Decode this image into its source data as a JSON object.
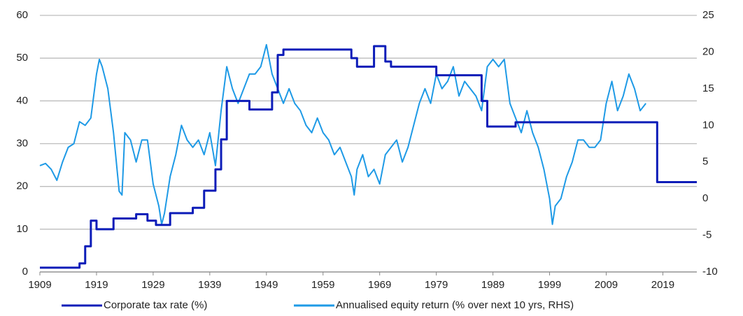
{
  "chart_data": {
    "type": "line",
    "xlim": [
      1909,
      2025
    ],
    "xticks": [
      1909,
      1919,
      1929,
      1939,
      1949,
      1959,
      1969,
      1979,
      1989,
      1999,
      2009,
      2019
    ],
    "ylim": [
      0,
      60
    ],
    "yticks": [
      0,
      10,
      20,
      30,
      40,
      50,
      60
    ],
    "y2lim": [
      -10,
      25
    ],
    "y2ticks": [
      -10,
      -5,
      0,
      5,
      10,
      15,
      20,
      25
    ],
    "grid": true,
    "legend": "bottom",
    "series": [
      {
        "name": "Corporate tax rate (%)",
        "color": "#0c1cb8",
        "step": true,
        "x": [
          1909,
          1916,
          1917,
          1918,
          1919,
          1922,
          1926,
          1928,
          1929.5,
          1932,
          1936,
          1938,
          1940,
          1941,
          1942,
          1946,
          1950,
          1951,
          1952,
          1964,
          1965,
          1968,
          1970,
          1971,
          1979,
          1987,
          1988,
          1993,
          2018,
          2025
        ],
        "values": [
          1,
          2,
          6,
          12,
          10,
          12.5,
          13.5,
          12,
          11,
          13.75,
          15,
          19,
          24,
          31,
          40,
          38,
          42,
          50.75,
          52,
          50,
          48,
          52.8,
          49.2,
          48,
          46,
          40,
          34,
          35,
          21,
          21
        ]
      },
      {
        "name": "Annualised equity return (% over next 10 yrs, RHS)",
        "color": "#1e9ae6",
        "axis": "y2",
        "x": [
          1909,
          1910,
          1911,
          1912,
          1913,
          1914,
          1915,
          1916,
          1917,
          1918,
          1919,
          1919.5,
          1920,
          1921,
          1922,
          1923,
          1923.5,
          1924,
          1925,
          1926,
          1927,
          1928,
          1929,
          1930,
          1930.5,
          1931,
          1932,
          1933,
          1934,
          1935,
          1936,
          1937,
          1938,
          1939,
          1940,
          1941,
          1942,
          1943,
          1944,
          1945,
          1946,
          1947,
          1948,
          1949,
          1950,
          1951,
          1952,
          1953,
          1954,
          1955,
          1956,
          1957,
          1958,
          1959,
          1960,
          1961,
          1962,
          1963,
          1964,
          1964.5,
          1965,
          1966,
          1967,
          1968,
          1969,
          1970,
          1971,
          1972,
          1973,
          1974,
          1975,
          1976,
          1977,
          1978,
          1979,
          1980,
          1981,
          1982,
          1983,
          1984,
          1985,
          1986,
          1987,
          1988,
          1989,
          1990,
          1991,
          1992,
          1993,
          1994,
          1995,
          1996,
          1997,
          1998,
          1999,
          1999.5,
          2000,
          2001,
          2002,
          2003,
          2004,
          2005,
          2006,
          2007,
          2008,
          2009,
          2010,
          2011,
          2012,
          2013,
          2014,
          2015,
          2016
        ],
        "values": [
          4.5,
          4.8,
          4,
          2.5,
          5,
          7,
          7.5,
          10.5,
          10,
          11,
          17,
          19,
          18,
          15,
          9,
          1,
          0.5,
          9,
          8,
          5,
          8,
          8,
          2,
          -1,
          -3.5,
          -2,
          3,
          6,
          10,
          8,
          7,
          8,
          6,
          9,
          4.5,
          12,
          18,
          15,
          13,
          15,
          17,
          17,
          18,
          21,
          17,
          15,
          13,
          15,
          13,
          12,
          10,
          9,
          11,
          9,
          8,
          6,
          7,
          5,
          3,
          0.5,
          4,
          6,
          3,
          4,
          2,
          6,
          7,
          8,
          5,
          7,
          10,
          13,
          15,
          13,
          17,
          15,
          16,
          18,
          14,
          16,
          15,
          14,
          12,
          18,
          19,
          18,
          19,
          13,
          11,
          9,
          12,
          9,
          7,
          4,
          0,
          -3.5,
          -1,
          0,
          3,
          5,
          8,
          8,
          7,
          7,
          8,
          13,
          16,
          12,
          14,
          17,
          15,
          12,
          13
        ]
      }
    ]
  }
}
